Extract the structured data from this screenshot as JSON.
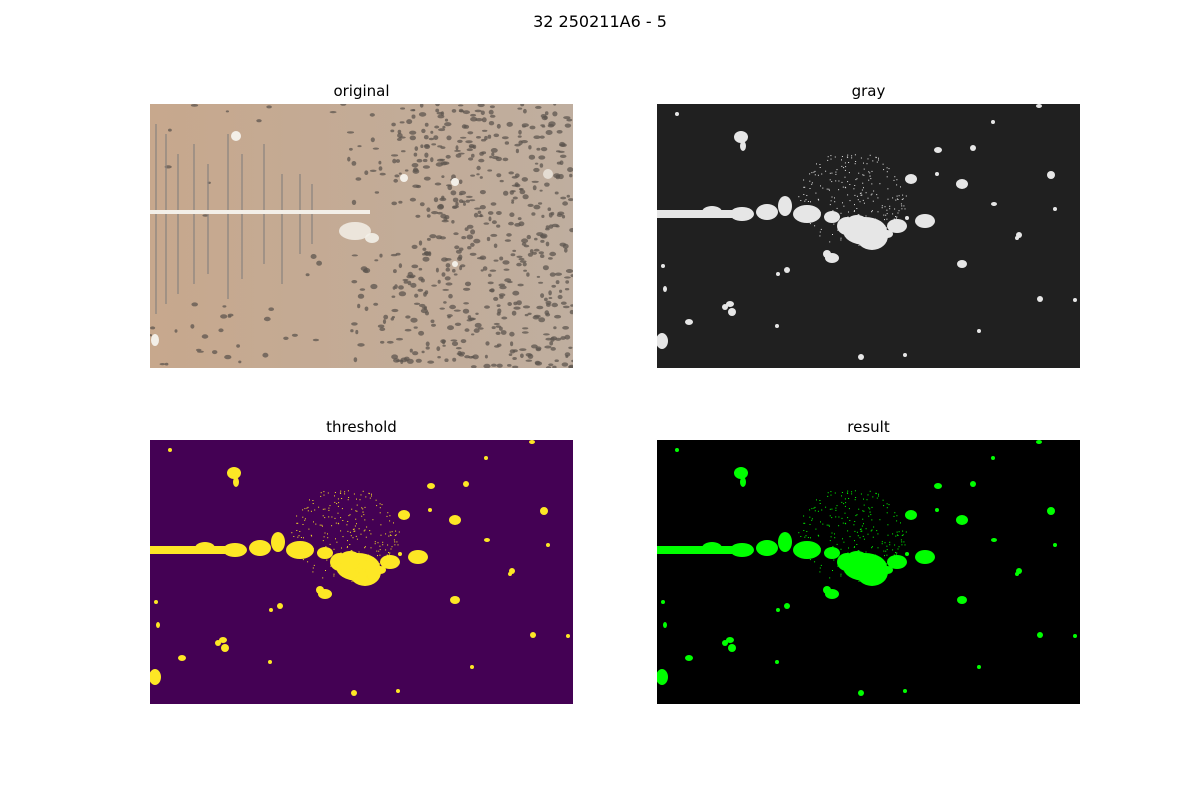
{
  "figure": {
    "suptitle": "32 250211A6 - 5"
  },
  "panels": [
    {
      "title": "original",
      "kind": "photo"
    },
    {
      "title": "gray",
      "kind": "mask",
      "bg": "#202020",
      "fg": "#e6e6e6"
    },
    {
      "title": "threshold",
      "kind": "mask",
      "bg": "#440154",
      "fg": "#fde725"
    },
    {
      "title": "result",
      "kind": "mask",
      "bg": "#000000",
      "fg": "#00ff00"
    }
  ],
  "colors": {
    "photo_bg": "#c9a98e",
    "photo_spot": "#5e564f",
    "crystal": "#f3efe8"
  }
}
